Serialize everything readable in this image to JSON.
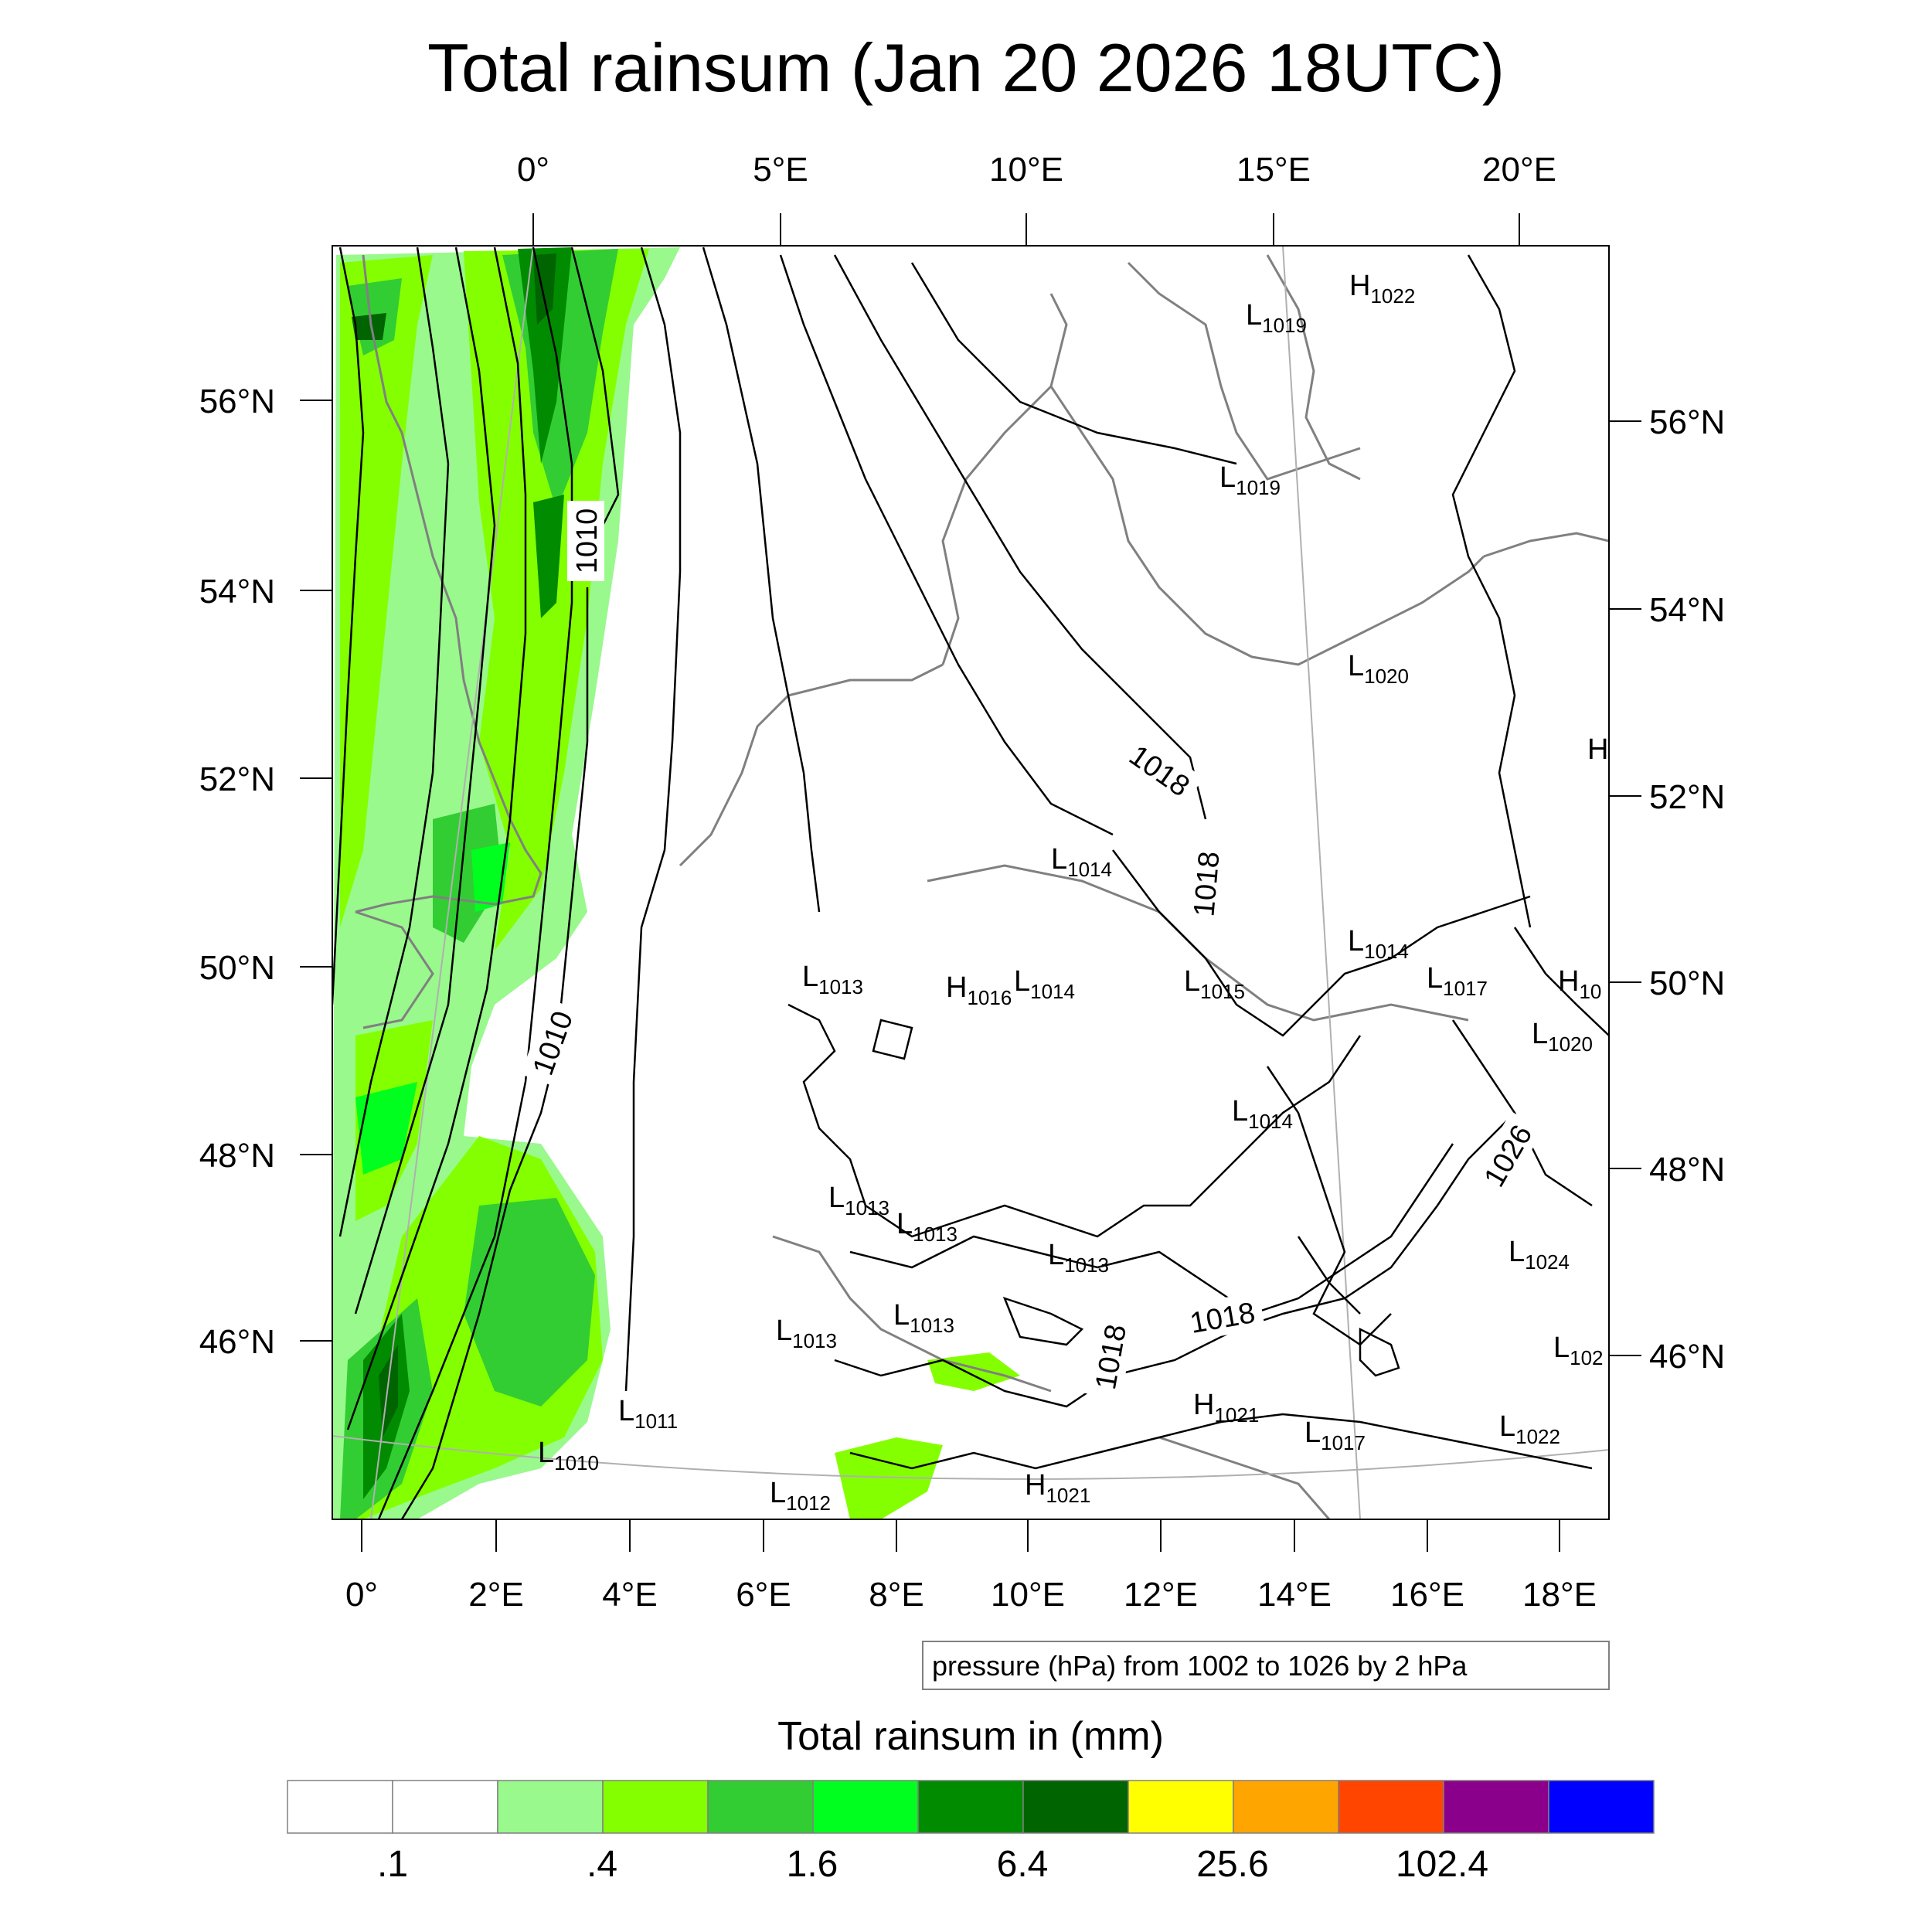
{
  "title": "Total rainsum (Jan 20 2026 18UTC)",
  "top_ticks": [
    "0°",
    "5°E",
    "10°E",
    "15°E",
    "20°E"
  ],
  "left_ticks": [
    "56°N",
    "54°N",
    "52°N",
    "50°N",
    "48°N",
    "46°N"
  ],
  "right_ticks": [
    "56°N",
    "54°N",
    "52°N",
    "50°N",
    "48°N",
    "46°N"
  ],
  "bottom_ticks": [
    "0°",
    "2°E",
    "4°E",
    "6°E",
    "8°E",
    "10°E",
    "12°E",
    "14°E",
    "16°E",
    "18°E"
  ],
  "contour_labels": [
    "1010",
    "1010",
    "1018",
    "1018",
    "1018",
    "1018",
    "1026"
  ],
  "pressure_centers": [
    {
      "letter": "H",
      "value": "1022"
    },
    {
      "letter": "L",
      "value": "1019"
    },
    {
      "letter": "L",
      "value": "1019"
    },
    {
      "letter": "L",
      "value": "1020"
    },
    {
      "letter": "H",
      "value": ""
    },
    {
      "letter": "L",
      "value": "1014"
    },
    {
      "letter": "L",
      "value": "1014"
    },
    {
      "letter": "L",
      "value": "1013"
    },
    {
      "letter": "H",
      "value": "1016"
    },
    {
      "letter": "L",
      "value": "1014"
    },
    {
      "letter": "L",
      "value": "1015"
    },
    {
      "letter": "L",
      "value": "1017"
    },
    {
      "letter": "H",
      "value": "10"
    },
    {
      "letter": "L",
      "value": "1020"
    },
    {
      "letter": "L",
      "value": "1014"
    },
    {
      "letter": "L",
      "value": "1013"
    },
    {
      "letter": "L",
      "value": "1013"
    },
    {
      "letter": "L",
      "value": "1013"
    },
    {
      "letter": "L",
      "value": "1024"
    },
    {
      "letter": "L",
      "value": "1013"
    },
    {
      "letter": "L",
      "value": "1013"
    },
    {
      "letter": "L",
      "value": "102"
    },
    {
      "letter": "L",
      "value": "1011"
    },
    {
      "letter": "L",
      "value": "1010"
    },
    {
      "letter": "H",
      "value": "1021"
    },
    {
      "letter": "L",
      "value": "1017"
    },
    {
      "letter": "L",
      "value": "1022"
    },
    {
      "letter": "L",
      "value": "1012"
    },
    {
      "letter": "H",
      "value": "1021"
    }
  ],
  "contour_note": "pressure (hPa) from 1002 to 1026 by 2 hPa",
  "colorbar": {
    "title": "Total rainsum in (mm)",
    "colors": [
      "#ffffff",
      "#ffffff",
      "#99f98c",
      "#84ff00",
      "#32cd32",
      "#00ff1e",
      "#008b00",
      "#006400",
      "#ffff00",
      "#ffa500",
      "#ff4500",
      "#8b008b",
      "#0000ff"
    ],
    "labels": [
      ".1",
      ".4",
      "1.6",
      "6.4",
      "25.6",
      "102.4"
    ]
  },
  "rain_colors": {
    "light": "#99f98c",
    "lime": "#84ff00",
    "mid": "#32cd32",
    "bright": "#00ff1e",
    "dark": "#008b00",
    "darkest": "#006400"
  }
}
